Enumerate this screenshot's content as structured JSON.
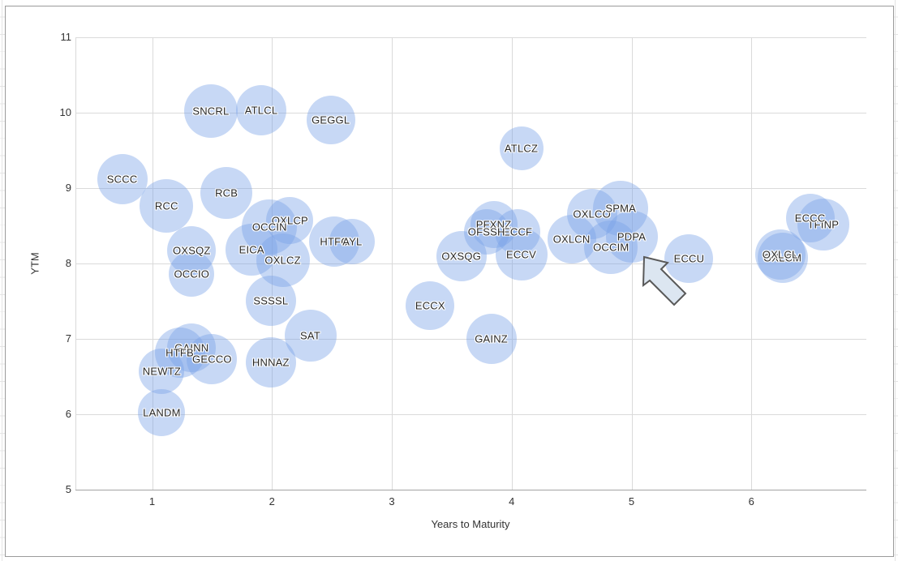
{
  "colors": {
    "bubble_fill": "#c7d6f3",
    "gridline": "#dadada",
    "axis_line": "#a3a3a3",
    "chart_border": "#9b9b9b",
    "sheet_line": "#e4e4e4",
    "label_text": "#282828",
    "arrow_fill": "#dce6f1",
    "arrow_stroke": "#595959"
  },
  "chart_data": {
    "type": "scatter",
    "subtype": "bubble",
    "title": "",
    "xlabel": "Years to Maturity",
    "ylabel": "YTM",
    "grid": true,
    "legend": "none",
    "xlim": [
      0.36,
      6.96
    ],
    "ylim": [
      5,
      11
    ],
    "xticks": [
      1,
      2,
      3,
      4,
      5,
      6
    ],
    "yticks": [
      5,
      6,
      7,
      8,
      9,
      10,
      11
    ],
    "points": [
      {
        "label": "SCCC",
        "x": 0.75,
        "y": 9.12,
        "r": 31
      },
      {
        "label": "RCC",
        "x": 1.12,
        "y": 8.76,
        "r": 33
      },
      {
        "label": "RCB",
        "x": 1.62,
        "y": 8.93,
        "r": 32
      },
      {
        "label": "SNCRL",
        "x": 1.49,
        "y": 10.02,
        "r": 33
      },
      {
        "label": "ATLCL",
        "x": 1.91,
        "y": 10.03,
        "r": 31
      },
      {
        "label": "GEGGL",
        "x": 2.49,
        "y": 9.9,
        "r": 30
      },
      {
        "label": "ATLCZ",
        "x": 4.08,
        "y": 9.53,
        "r": 27
      },
      {
        "label": "OXSQZ",
        "x": 1.33,
        "y": 8.17,
        "r": 30
      },
      {
        "label": "OCCIO",
        "x": 1.33,
        "y": 7.86,
        "r": 28
      },
      {
        "label": "EICA",
        "x": 1.83,
        "y": 8.18,
        "r": 32
      },
      {
        "label": "OXLCP",
        "x": 2.15,
        "y": 8.57,
        "r": 29
      },
      {
        "label": "OCCIN",
        "x": 1.98,
        "y": 8.48,
        "r": 34
      },
      {
        "label": "OXLCZ",
        "x": 2.09,
        "y": 8.04,
        "r": 33
      },
      {
        "label": "HTFC",
        "x": 2.52,
        "y": 8.29,
        "r": 31
      },
      {
        "label": "AYL",
        "x": 2.67,
        "y": 8.29,
        "r": 28
      },
      {
        "label": "SSSSL",
        "x": 1.99,
        "y": 7.5,
        "r": 31
      },
      {
        "label": "SAT",
        "x": 2.32,
        "y": 7.04,
        "r": 32
      },
      {
        "label": "GAINN",
        "x": 1.33,
        "y": 6.88,
        "r": 30
      },
      {
        "label": "HTFB",
        "x": 1.23,
        "y": 6.82,
        "r": 31
      },
      {
        "label": "GECCO",
        "x": 1.5,
        "y": 6.73,
        "r": 31
      },
      {
        "label": "NEWTZ",
        "x": 1.08,
        "y": 6.57,
        "r": 28
      },
      {
        "label": "LANDM",
        "x": 1.08,
        "y": 6.02,
        "r": 29
      },
      {
        "label": "HNNAZ",
        "x": 1.99,
        "y": 6.69,
        "r": 31
      },
      {
        "label": "ECCX",
        "x": 3.32,
        "y": 7.44,
        "r": 30
      },
      {
        "label": "OXSQG",
        "x": 3.58,
        "y": 8.1,
        "r": 31
      },
      {
        "label": "PFXNZ",
        "x": 3.85,
        "y": 8.51,
        "r": 29
      },
      {
        "label": "ECCF",
        "x": 4.05,
        "y": 8.42,
        "r": 28
      },
      {
        "label": "OFSSH",
        "x": 3.79,
        "y": 8.42,
        "r": 28
      },
      {
        "label": "ECCV",
        "x": 4.08,
        "y": 8.12,
        "r": 32
      },
      {
        "label": "GAINZ",
        "x": 3.83,
        "y": 7.0,
        "r": 31
      },
      {
        "label": "OXLCO",
        "x": 4.67,
        "y": 8.65,
        "r": 31
      },
      {
        "label": "SPMA",
        "x": 4.91,
        "y": 8.73,
        "r": 34
      },
      {
        "label": "OXLCN",
        "x": 4.5,
        "y": 8.32,
        "r": 30
      },
      {
        "label": "OCCIM",
        "x": 4.83,
        "y": 8.21,
        "r": 33
      },
      {
        "label": "PDPA",
        "x": 5.0,
        "y": 8.35,
        "r": 32
      },
      {
        "label": "ECCU",
        "x": 5.48,
        "y": 8.06,
        "r": 30
      },
      {
        "label": "TFINP",
        "x": 6.6,
        "y": 8.51,
        "r": 32
      },
      {
        "label": "ECCC",
        "x": 6.49,
        "y": 8.6,
        "r": 30
      },
      {
        "label": "OXLCM",
        "x": 6.26,
        "y": 8.07,
        "r": 31
      },
      {
        "label": "OXLCL",
        "x": 6.24,
        "y": 8.12,
        "r": 31
      }
    ]
  },
  "annotation": {
    "shape": "block-arrow",
    "direction": "up-left",
    "polygon_points": "794,317 823,324 815,332 845,362 831,376 801,346 793,352"
  }
}
